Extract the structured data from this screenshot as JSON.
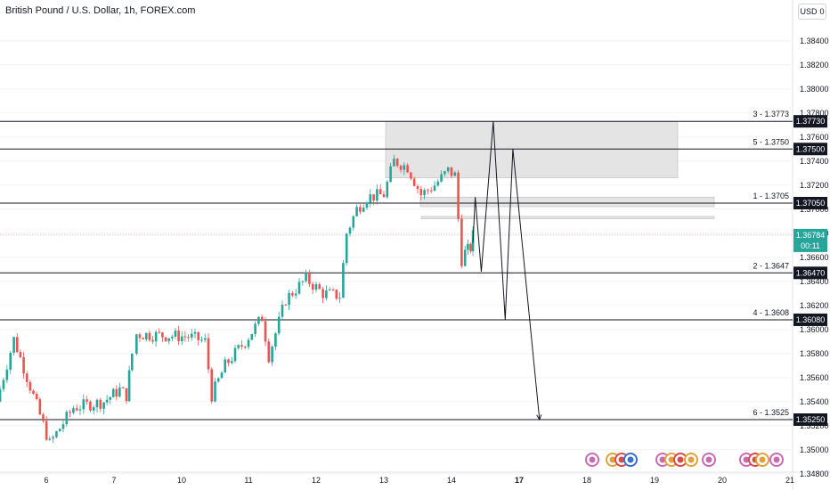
{
  "chart_title": "British Pound / U.S. Dollar, 1h, FOREX.com",
  "currency_label": "USD",
  "currency_suffix": "0",
  "colors": {
    "up": "#26a69a",
    "down": "#ef5350",
    "level_line": "#131722",
    "zone_fill": "#e4e4e4",
    "price_tag": "#26a69a",
    "axis_text": "#131722"
  },
  "chart_data": {
    "type": "candlestick",
    "symbol": "GBPUSD",
    "timeframe": "1h",
    "ylim": [
      1.347,
      1.3858
    ],
    "y_ticks": [
      "1.38400",
      "1.38200",
      "1.38000",
      "1.37800",
      "1.37600",
      "1.37400",
      "1.37200",
      "1.37000",
      "1.36800",
      "1.36600",
      "1.36400",
      "1.36200",
      "1.36000",
      "1.35800",
      "1.35600",
      "1.35400",
      "1.35200",
      "1.35000",
      "1.34800"
    ],
    "x_ticks": [
      "6",
      "7",
      "10",
      "11",
      "12",
      "13",
      "14",
      "17",
      "18",
      "19",
      "20",
      "21"
    ],
    "bold_x_ticks": [
      "17"
    ],
    "levels": [
      {
        "label": "3 - 1.3773",
        "tag": "1.37730",
        "price": 1.3773
      },
      {
        "label": "5 - 1.3750",
        "tag": "1.37500",
        "price": 1.375
      },
      {
        "label": "1 - 1.3705",
        "tag": "1.37050",
        "price": 1.3705
      },
      {
        "label": "2 - 1.3647",
        "tag": "1.36470",
        "price": 1.3647
      },
      {
        "label": "4 - 1.3608",
        "tag": "1.36080",
        "price": 1.3608
      },
      {
        "label": "6 - 1.3525",
        "tag": "1.35250",
        "price": 1.3525
      }
    ],
    "current_price": {
      "price": "1.36784",
      "countdown": "00:11"
    },
    "zones": [
      {
        "top": 1.3773,
        "bottom": 1.3726
      },
      {
        "top": 1.371,
        "bottom": 1.3702
      },
      {
        "top": 1.3694,
        "bottom": 1.3692
      }
    ],
    "projection_path": [
      {
        "day": 14.95,
        "price": 1.3672
      },
      {
        "day": 15.05,
        "price": 1.371
      },
      {
        "day": 15.32,
        "price": 1.3648
      },
      {
        "day": 15.85,
        "price": 1.3773
      },
      {
        "day": 16.38,
        "price": 1.3608
      },
      {
        "day": 16.72,
        "price": 1.375
      },
      {
        "day": 17.3,
        "price": 1.3525
      }
    ],
    "anchors": [
      {
        "day": 5.45,
        "price": 1.354
      },
      {
        "day": 5.65,
        "price": 1.3592
      },
      {
        "day": 6.05,
        "price": 1.3505
      },
      {
        "day": 6.4,
        "price": 1.3535
      },
      {
        "day": 6.85,
        "price": 1.354
      },
      {
        "day": 7.25,
        "price": 1.355
      },
      {
        "day": 7.55,
        "price": 1.3545
      },
      {
        "day": 7.8,
        "price": 1.358
      },
      {
        "day": 8.0,
        "price": 1.3596
      },
      {
        "day": 10.1,
        "price": 1.3594
      },
      {
        "day": 10.35,
        "price": 1.359
      },
      {
        "day": 10.45,
        "price": 1.3545
      },
      {
        "day": 10.65,
        "price": 1.357
      },
      {
        "day": 10.95,
        "price": 1.359
      },
      {
        "day": 11.2,
        "price": 1.361
      },
      {
        "day": 11.3,
        "price": 1.3578
      },
      {
        "day": 11.55,
        "price": 1.3625
      },
      {
        "day": 11.85,
        "price": 1.3642
      },
      {
        "day": 12.1,
        "price": 1.363
      },
      {
        "day": 12.35,
        "price": 1.3628
      },
      {
        "day": 12.45,
        "price": 1.368
      },
      {
        "day": 12.6,
        "price": 1.37
      },
      {
        "day": 12.75,
        "price": 1.371
      },
      {
        "day": 13.0,
        "price": 1.3712
      },
      {
        "day": 13.15,
        "price": 1.374
      },
      {
        "day": 13.35,
        "price": 1.3735
      },
      {
        "day": 13.55,
        "price": 1.3712
      },
      {
        "day": 13.75,
        "price": 1.372
      },
      {
        "day": 13.95,
        "price": 1.3732
      },
      {
        "day": 14.15,
        "price": 1.3728
      },
      {
        "day": 14.3,
        "price": 1.3692
      },
      {
        "day": 14.45,
        "price": 1.3658
      },
      {
        "day": 14.6,
        "price": 1.3664
      },
      {
        "day": 14.85,
        "price": 1.3668
      },
      {
        "day": 14.95,
        "price": 1.3678
      }
    ]
  }
}
